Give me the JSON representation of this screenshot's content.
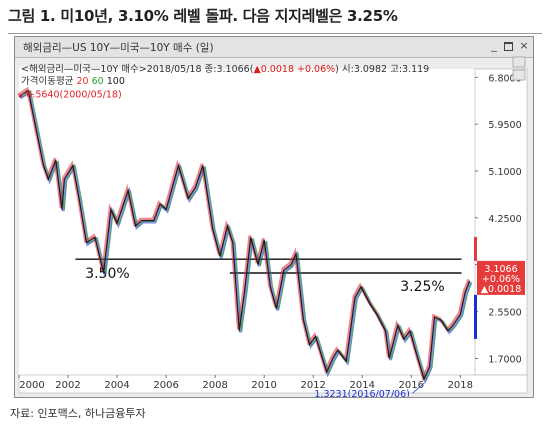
{
  "figure": {
    "title": "그림 1. 미10년, 3.10% 레벨 돌파. 다음 지지레벨은 3.25%",
    "source": "자료: 인포맥스, 하나금융투자"
  },
  "window": {
    "title": "해외금리—US     10Y—미국—10Y 매수 (일)",
    "buttons": {
      "minimize": "_",
      "close": "×"
    }
  },
  "info": {
    "name": "<해외금리—미국—10Y 매수>",
    "date_close": "2018/05/18 종:3.1066(",
    "change": "▲0.0018 +0.06%",
    "open_high": ") 시:3.0982 고:3.119",
    "ma_label": "가격이동평균",
    "ma": [
      "20",
      "60",
      "100"
    ]
  },
  "colors": {
    "up": "#e0202a",
    "down": "#1a2fd8",
    "ma20": "#e3312b",
    "ma60": "#2ca02c",
    "ma100": "#222222",
    "line": "#1b1b1b",
    "plot_bg": "#ffffff",
    "accent": "#e63b3b"
  },
  "chart_data": {
    "type": "line",
    "title": "",
    "xlabel": "",
    "ylabel": "",
    "x_ticks": [
      "2000",
      "2002",
      "2004",
      "2006",
      "2008",
      "2010",
      "2012",
      "2014",
      "2016",
      "2018"
    ],
    "y_ticks": [
      "6.8000",
      "5.9500",
      "5.1000",
      "4.2500",
      "3.4000",
      "2.5500",
      "1.7000"
    ],
    "xlim": [
      2000.0,
      2018.6
    ],
    "ylim": [
      1.4,
      6.95
    ],
    "grid": false,
    "series": [
      {
        "values_x": [
          2000.0,
          2000.38,
          2000.7,
          2001.0,
          2001.2,
          2001.5,
          2001.75,
          2001.85,
          2002.2,
          2002.45,
          2002.75,
          2003.1,
          2003.45,
          2003.75,
          2004.0,
          2004.45,
          2004.75,
          2005.0,
          2005.5,
          2005.75,
          2006.0,
          2006.5,
          2006.9,
          2007.2,
          2007.5,
          2007.9,
          2008.2,
          2008.5,
          2008.72,
          2008.98,
          2009.2,
          2009.45,
          2009.75,
          2010.0,
          2010.25,
          2010.5,
          2010.8,
          2011.1,
          2011.3,
          2011.6,
          2011.85,
          2012.1,
          2012.55,
          2012.8,
          2013.0,
          2013.35,
          2013.7,
          2013.95,
          2014.3,
          2014.6,
          2014.95,
          2015.1,
          2015.45,
          2015.7,
          2015.95,
          2016.2,
          2016.52,
          2016.75,
          2016.95,
          2017.2,
          2017.5,
          2017.7,
          2018.0,
          2018.2,
          2018.38
        ],
        "values_y": [
          6.45,
          6.56,
          5.85,
          5.2,
          4.95,
          5.3,
          4.4,
          4.95,
          5.2,
          4.6,
          3.8,
          3.9,
          3.25,
          4.4,
          4.15,
          4.75,
          4.1,
          4.2,
          4.2,
          4.5,
          4.4,
          5.2,
          4.6,
          4.8,
          5.2,
          4.05,
          3.55,
          4.1,
          3.8,
          2.2,
          2.9,
          3.9,
          3.4,
          3.85,
          3.0,
          2.6,
          3.3,
          3.4,
          3.6,
          2.4,
          1.95,
          2.1,
          1.45,
          1.7,
          1.85,
          1.65,
          2.8,
          3.0,
          2.7,
          2.5,
          2.2,
          1.7,
          2.3,
          2.05,
          2.2,
          1.8,
          1.3231,
          1.55,
          2.45,
          2.4,
          2.2,
          2.3,
          2.5,
          2.9,
          3.1066
        ]
      }
    ],
    "support_lines": [
      {
        "y": 3.5,
        "label": "3.50%"
      },
      {
        "y": 3.25,
        "label": "3.25%"
      }
    ],
    "annotations": [
      {
        "label": "6.5640(2000/05/18)",
        "x": 2000.38,
        "y": 6.564
      },
      {
        "label": "1.3231(2016/07/06)",
        "x": 2016.52,
        "y": 1.3231
      }
    ],
    "last_value": {
      "price": "3.1066",
      "pct": "+0.06%",
      "change": "▲0.0018"
    }
  }
}
